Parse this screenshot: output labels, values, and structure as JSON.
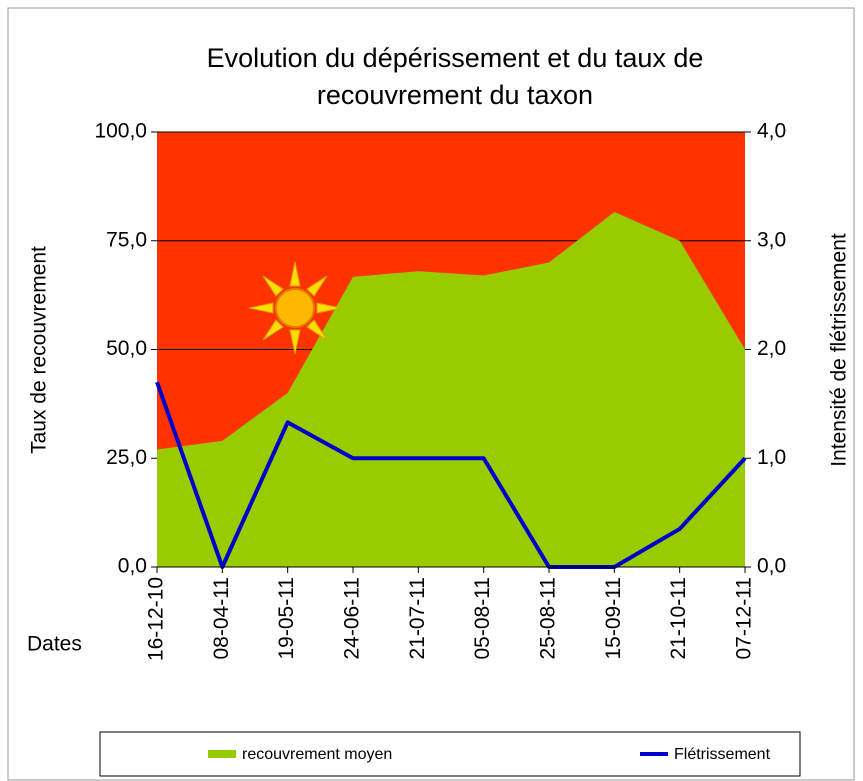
{
  "chart_data": {
    "type": "area-line",
    "title": [
      "Evolution du dépérissement et du taux de",
      "recouvrement du taxon"
    ],
    "y_label": "Taux de recouvrement",
    "y2_label": "Intensité de flétrissement",
    "x_label": "Dates",
    "categories": [
      "16-12-10",
      "08-04-11",
      "19-05-11",
      "24-06-11",
      "21-07-11",
      "05-08-11",
      "25-08-11",
      "15-09-11",
      "21-10-11",
      "07-12-11"
    ],
    "series": [
      {
        "name": "recouvrement moyen",
        "color": "#99cc00",
        "kind": "area",
        "values": [
          27,
          29,
          40,
          66.7,
          68,
          67,
          70,
          81.6,
          75,
          50
        ]
      },
      {
        "name": "Flétrissement",
        "color": "#0000cc",
        "kind": "line",
        "axis": "y2",
        "values": [
          1.7,
          0,
          1.33,
          1,
          1,
          1,
          0,
          0,
          0.35,
          1
        ]
      }
    ],
    "background": "#ff3300",
    "ylim": [
      0,
      100
    ],
    "yticks": [
      {
        "value": 0,
        "label": "0,0"
      },
      {
        "value": 25,
        "label": "25,0"
      },
      {
        "value": 50,
        "label": "50,0"
      },
      {
        "value": 75,
        "label": "75,0"
      },
      {
        "value": 100,
        "label": "100,0"
      }
    ],
    "y2lim": [
      0,
      4
    ],
    "y2ticks": [
      {
        "value": 0,
        "label": "0,0"
      },
      {
        "value": 1,
        "label": "1,0"
      },
      {
        "value": 2,
        "label": "2,0"
      },
      {
        "value": 3,
        "label": "3,0"
      },
      {
        "value": 4,
        "label": "4,0"
      }
    ],
    "grid": true,
    "legend": "bottom"
  }
}
